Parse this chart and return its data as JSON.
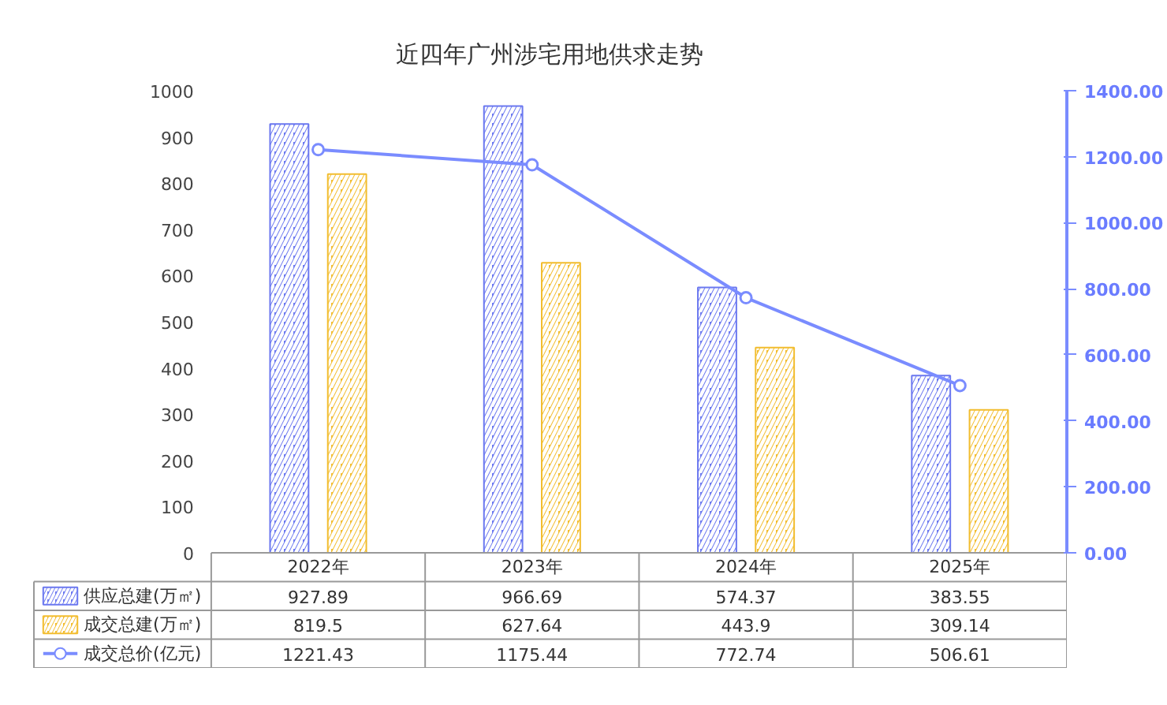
{
  "chart_data": {
    "type": "bar",
    "title": "近四年广州涉宅用地供求走势",
    "categories": [
      "2022年",
      "2023年",
      "2024年",
      "2025年"
    ],
    "series": [
      {
        "name": "供应总建(万㎡)",
        "color": "#6b78f0",
        "values": [
          927.89,
          966.69,
          574.37,
          383.55
        ]
      },
      {
        "name": "成交总建(万㎡)",
        "color": "#f2bd2f",
        "values": [
          819.5,
          627.64,
          443.9,
          309.14
        ]
      },
      {
        "name": "成交总价(亿元)",
        "type": "line",
        "axis": "y2",
        "color": "#7a8cff",
        "values": [
          1221.43,
          1175.44,
          772.74,
          506.61
        ]
      }
    ],
    "ylim": [
      0,
      1000
    ],
    "yticks": [
      0,
      100,
      200,
      300,
      400,
      500,
      600,
      700,
      800,
      900,
      1000
    ],
    "y2lim": [
      0,
      1400
    ],
    "y2ticks": [
      {
        "value": 0,
        "label": "0.00"
      },
      {
        "value": 200,
        "label": "200.00"
      },
      {
        "value": 400,
        "label": "400.00"
      },
      {
        "value": 600,
        "label": "600.00"
      },
      {
        "value": 800,
        "label": "800.00"
      },
      {
        "value": 1000,
        "label": "1000.00"
      },
      {
        "value": 1200,
        "label": "1200.00"
      },
      {
        "value": 1400,
        "label": "1400.00"
      }
    ],
    "data_labels": true,
    "legend": "bottom",
    "marker": "circle",
    "grid": false
  }
}
